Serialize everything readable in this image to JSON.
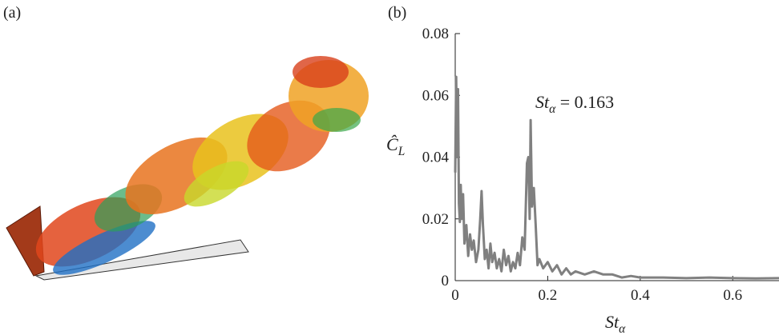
{
  "panels": {
    "a": "(a)",
    "b": "(b)"
  },
  "chart_data": {
    "type": "line",
    "xlabel": {
      "base": "St",
      "sub": "α"
    },
    "ylabel": {
      "base": "Ĉ",
      "sub": "L"
    },
    "annotation": {
      "base": "St",
      "sub": "α",
      "rest": " = 0.163"
    },
    "xlim": [
      0,
      0.7
    ],
    "ylim": [
      0,
      0.08
    ],
    "xticks": [
      0,
      0.2,
      0.4,
      0.6
    ],
    "yticks": [
      0,
      0.02,
      0.04,
      0.06,
      0.08
    ],
    "series": [
      {
        "color": "#808080",
        "x": [
          0,
          0.002,
          0.004,
          0.006,
          0.008,
          0.01,
          0.012,
          0.014,
          0.017,
          0.02,
          0.024,
          0.028,
          0.032,
          0.036,
          0.04,
          0.045,
          0.05,
          0.054,
          0.057,
          0.06,
          0.064,
          0.068,
          0.072,
          0.076,
          0.08,
          0.085,
          0.09,
          0.095,
          0.1,
          0.105,
          0.11,
          0.115,
          0.12,
          0.125,
          0.13,
          0.135,
          0.14,
          0.145,
          0.15,
          0.155,
          0.158,
          0.161,
          0.163,
          0.166,
          0.17,
          0.174,
          0.178,
          0.182,
          0.19,
          0.2,
          0.21,
          0.22,
          0.23,
          0.24,
          0.25,
          0.26,
          0.28,
          0.3,
          0.32,
          0.34,
          0.36,
          0.38,
          0.4,
          0.45,
          0.5,
          0.55,
          0.6,
          0.65,
          0.7
        ],
        "values": [
          0.035,
          0.066,
          0.04,
          0.062,
          0.025,
          0.019,
          0.031,
          0.02,
          0.028,
          0.012,
          0.018,
          0.008,
          0.015,
          0.01,
          0.013,
          0.006,
          0.01,
          0.02,
          0.029,
          0.018,
          0.007,
          0.01,
          0.004,
          0.012,
          0.006,
          0.009,
          0.004,
          0.007,
          0.003,
          0.01,
          0.005,
          0.008,
          0.003,
          0.006,
          0.004,
          0.009,
          0.005,
          0.014,
          0.01,
          0.038,
          0.04,
          0.02,
          0.052,
          0.024,
          0.03,
          0.018,
          0.005,
          0.007,
          0.004,
          0.006,
          0.003,
          0.005,
          0.002,
          0.004,
          0.002,
          0.003,
          0.002,
          0.003,
          0.002,
          0.002,
          0.001,
          0.0015,
          0.001,
          0.001,
          0.0008,
          0.001,
          0.0008,
          0.0007,
          0.0008
        ]
      }
    ]
  }
}
